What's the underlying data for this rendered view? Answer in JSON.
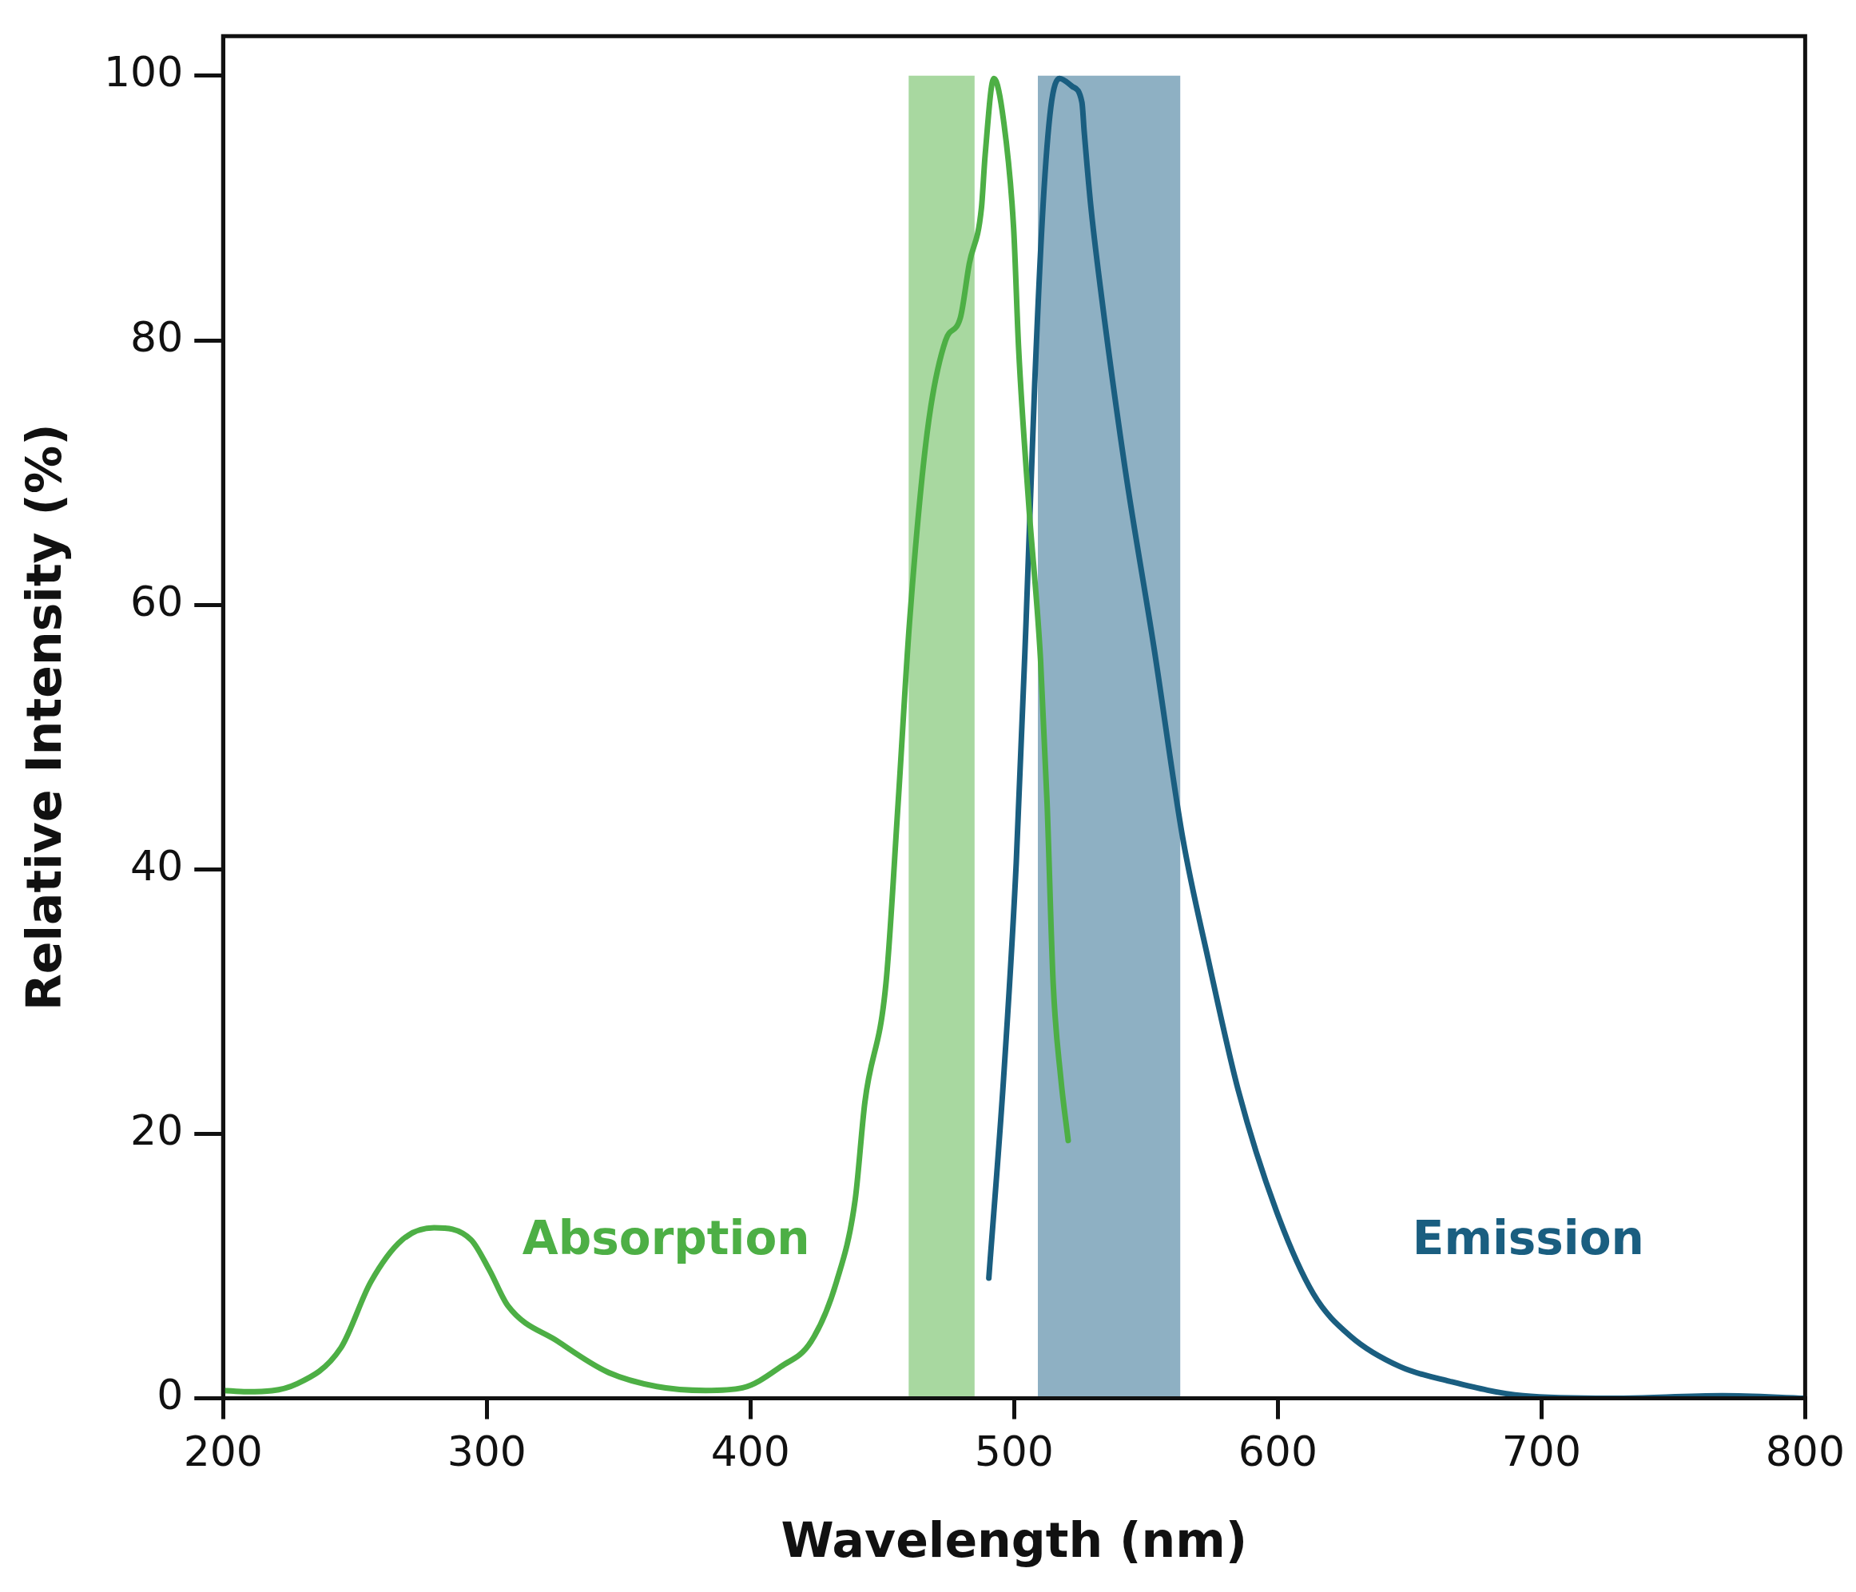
{
  "chart_data": {
    "type": "line",
    "xlabel": "Wavelength (nm)",
    "ylabel": "Relative Intensity (%)",
    "xlim": [
      200,
      800
    ],
    "xticks": [
      200,
      300,
      400,
      500,
      600,
      700,
      800
    ],
    "ylim": [
      0,
      103
    ],
    "yticks": [
      0,
      20,
      40,
      60,
      80,
      100
    ],
    "grid": false,
    "legend": false,
    "marker": "none",
    "line_style": "solid",
    "bands": [
      {
        "axis": "x",
        "from": 460,
        "to": 485,
        "color": "#a8d8a0"
      },
      {
        "axis": "x",
        "from": 509,
        "to": 563,
        "color": "#8eb0c3"
      }
    ],
    "series": [
      {
        "name": "Absorption",
        "color": "#4daf45",
        "x": [
          200,
          209,
          228,
          244.6,
          256,
          268,
          280,
          294,
          301,
          308,
          327,
          345.7,
          364.5,
          383,
          397,
          411.5,
          423,
          432.6,
          439.7,
          443.4,
          451.4,
          456,
          460.3,
          467,
          474,
          479.6,
          483,
          487.6,
          489,
          492.3,
          496,
          499.8,
          501.7,
          505.5,
          510,
          512.5,
          514.8,
          517.7,
          520.5
        ],
        "values": [
          0.6,
          0.5,
          1.1,
          3.8,
          8.8,
          12,
          12.9,
          12,
          9.7,
          7,
          4.3,
          2,
          0.9,
          0.6,
          0.8,
          2.4,
          4.3,
          8.8,
          15,
          22.4,
          31.4,
          45,
          58.6,
          73,
          80,
          81.7,
          85.8,
          90,
          94,
          99.8,
          96.6,
          88.5,
          79.4,
          67.7,
          55.9,
          45,
          31.4,
          24.2,
          19.5
        ]
      },
      {
        "name": "Emission",
        "color": "#1a5e80",
        "x": [
          490.4,
          496,
          500.8,
          504.5,
          507.8,
          511,
          513.9,
          517.2,
          522,
          525.7,
          526.6,
          529,
          532.7,
          542,
          553,
          564,
          573.6,
          585,
          599.4,
          613.5,
          627.6,
          646.4,
          665,
          693,
          726,
          768.6,
          800
        ],
        "values": [
          9.1,
          24.2,
          40.5,
          58.6,
          76.7,
          90.3,
          97.6,
          99.8,
          99.2,
          98,
          95.7,
          90.3,
          84,
          70.4,
          56.8,
          42.3,
          33.2,
          23.3,
          14.2,
          7.9,
          4.7,
          2.4,
          1.3,
          0.2,
          0,
          0.2,
          0
        ]
      }
    ]
  }
}
